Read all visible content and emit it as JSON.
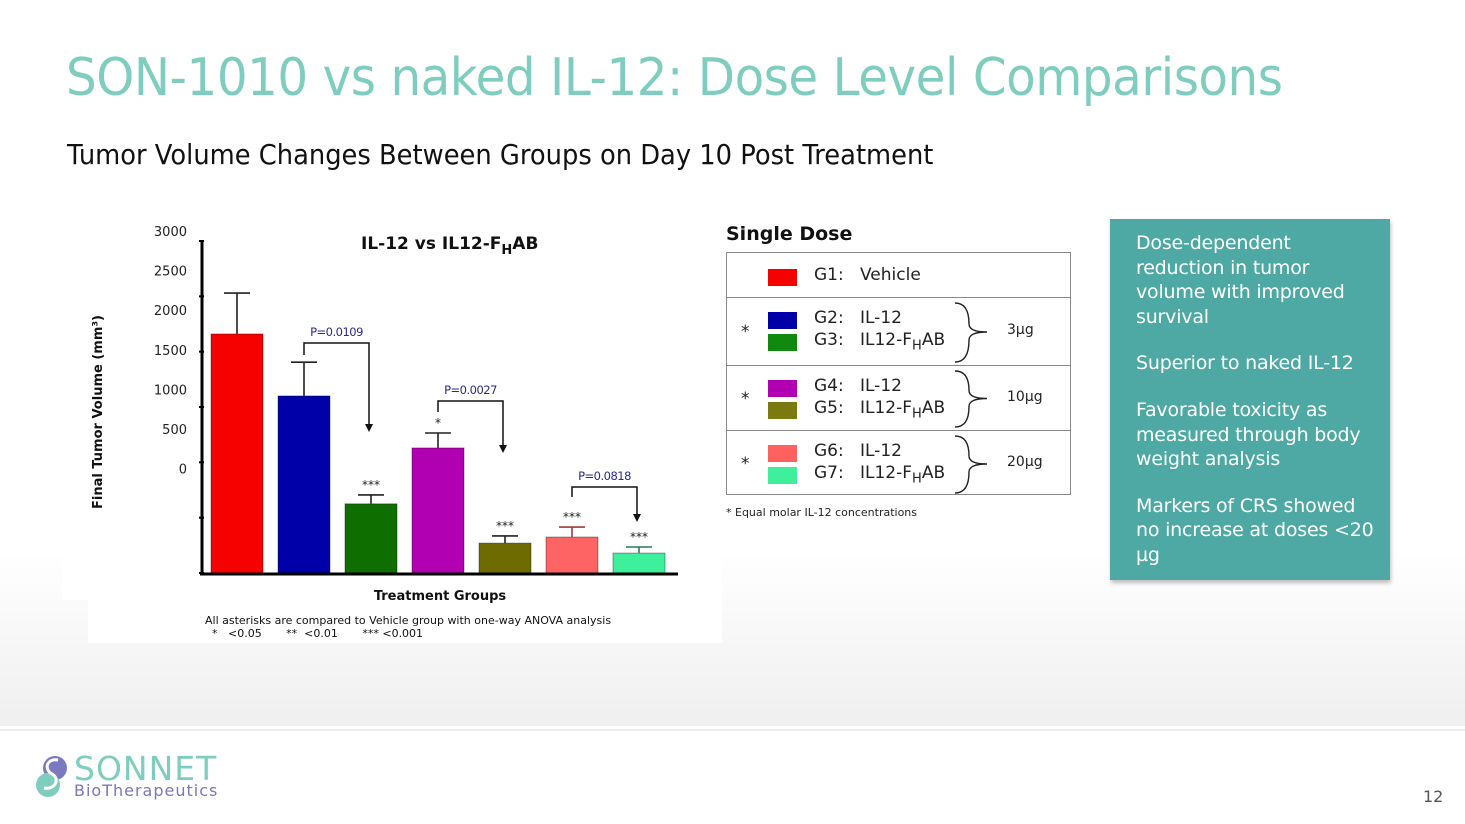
{
  "slide": {
    "title": "SON-1010 vs naked IL-12: Dose Level Comparisons",
    "subtitle": "Tumor Volume Changes Between Groups on Day 10 Post Treatment",
    "page_number": "12",
    "accent_color": "#7ecdbf",
    "callout_color": "#4ea9a4"
  },
  "chart_data": {
    "type": "bar",
    "title": "IL-12 vs IL12-F",
    "title_sub": "H",
    "title_tail": "AB",
    "xlabel": "Treatment Groups",
    "ylabel": "Final Tumor Volume (mm³)",
    "ylim": [
      0,
      3000
    ],
    "yticks": [
      "3000",
      "2500",
      "2000",
      "1500",
      "1000",
      "500",
      "0"
    ],
    "categories": [
      "G1",
      "G2",
      "G3",
      "G4",
      "G5",
      "G6",
      "G7"
    ],
    "values": [
      2160,
      1600,
      625,
      1130,
      270,
      325,
      180
    ],
    "error_upper": [
      2530,
      1905,
      705,
      1265,
      335,
      415,
      235
    ],
    "colors": [
      "#f70000",
      "#0000a8",
      "#0f6e00",
      "#b100b1",
      "#6e6c00",
      "#ff6464",
      "#3ef09c"
    ],
    "significance": [
      "",
      "",
      "***",
      "*",
      "***",
      "***",
      "***"
    ],
    "comparisons": [
      {
        "from": 1,
        "to": 2,
        "label": "P=0.0109"
      },
      {
        "from": 3,
        "to": 4,
        "label": "P=0.0027"
      },
      {
        "from": 5,
        "to": 6,
        "label": "P=0.0818"
      }
    ],
    "footnote_line1": "All asterisks are compared to Vehicle group with one-way ANOVA analysis",
    "footnote_line2": "*   <0.05       **  <0.01       *** <0.001",
    "grid": false,
    "legend": "none"
  },
  "legend": {
    "title": "Single Dose",
    "rows": [
      {
        "star": "",
        "dose": "",
        "items": [
          {
            "id": "G1:",
            "name": "Vehicle",
            "sub": "",
            "tail": "",
            "color": "#f70000"
          }
        ]
      },
      {
        "star": "*",
        "dose": "3µg",
        "items": [
          {
            "id": "G2:",
            "name": "IL-12",
            "sub": "",
            "tail": "",
            "color": "#0000a8"
          },
          {
            "id": "G3:",
            "name": "IL12-F",
            "sub": "H",
            "tail": "AB",
            "color": "#0f8a0f"
          }
        ]
      },
      {
        "star": "*",
        "dose": "10µg",
        "items": [
          {
            "id": "G4:",
            "name": "IL-12",
            "sub": "",
            "tail": "",
            "color": "#b100b1"
          },
          {
            "id": "G5:",
            "name": "IL12-F",
            "sub": "H",
            "tail": "AB",
            "color": "#7a7a10"
          }
        ]
      },
      {
        "star": "*",
        "dose": "20µg",
        "items": [
          {
            "id": "G6:",
            "name": "IL-12",
            "sub": "",
            "tail": "",
            "color": "#ff6060"
          },
          {
            "id": "G7:",
            "name": "IL12-F",
            "sub": "H",
            "tail": "AB",
            "color": "#3ef09c"
          }
        ]
      }
    ],
    "note": "* Equal molar IL-12 concentrations"
  },
  "callout": {
    "points": [
      "Dose-dependent reduction in tumor volume with improved survival",
      "Superior to naked IL-12",
      "Favorable toxicity as measured through body weight analysis",
      "Markers of CRS showed no increase at doses <20 µg"
    ]
  },
  "logo": {
    "word": "SONNET",
    "sub": "BioTherapeutics"
  }
}
